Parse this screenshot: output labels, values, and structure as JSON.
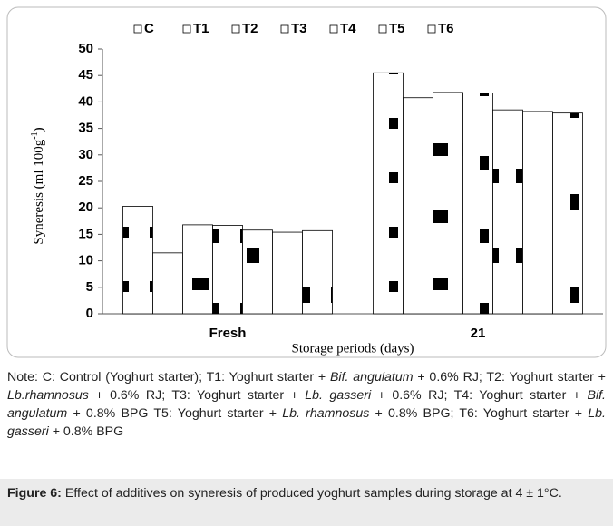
{
  "chart_data": {
    "type": "bar",
    "categories": [
      "Fresh",
      "21"
    ],
    "series": [
      {
        "name": "C",
        "color": "#ffffff",
        "values": [
          20.3,
          45.5
        ]
      },
      {
        "name": "T1",
        "color": "#ffffff",
        "values": [
          11.5,
          40.8
        ]
      },
      {
        "name": "T2",
        "color": "#ffffff",
        "values": [
          16.8,
          41.8
        ]
      },
      {
        "name": "T3",
        "color": "#ffffff",
        "values": [
          16.7,
          41.7
        ]
      },
      {
        "name": "T4",
        "color": "#ffffff",
        "values": [
          15.8,
          38.5
        ]
      },
      {
        "name": "T5",
        "color": "#ffffff",
        "values": [
          15.4,
          38.2
        ]
      },
      {
        "name": "T6",
        "color": "#ffffff",
        "values": [
          15.7,
          37.9
        ]
      }
    ],
    "ylabel": [
      "Syneresis (ml 100g",
      "-1",
      ")"
    ],
    "xlabel": "Storage periods (days)",
    "ylim": [
      0,
      50
    ],
    "yticks": [
      0,
      5,
      10,
      15,
      20,
      25,
      30,
      35,
      40,
      45,
      50
    ],
    "grid": false,
    "legend": "top"
  },
  "note": [
    "Note: C: Control (Yoghurt starter); T1: Yoghurt starter + ",
    "Bif. angulatum",
    " + 0.6% RJ; T2: Yoghurt starter + ",
    "Lb.rhamnosus",
    " + 0.6% RJ; T3: Yoghurt starter + ",
    "Lb. gasseri",
    " + 0.6% RJ; T4: Yoghurt starter + ",
    "Bif. angulatum",
    " + 0.8% BPG T5: Yoghurt starter + ",
    "Lb. rhamnosus",
    " + 0.8% BPG; T6: Yoghurt starter + ",
    "Lb. gasseri",
    " + 0.8% BPG"
  ],
  "caption": {
    "label": "Figure 6:",
    "text": " Effect of additives on syneresis of produced yoghurt samples during storage at 4 ± 1°C."
  }
}
